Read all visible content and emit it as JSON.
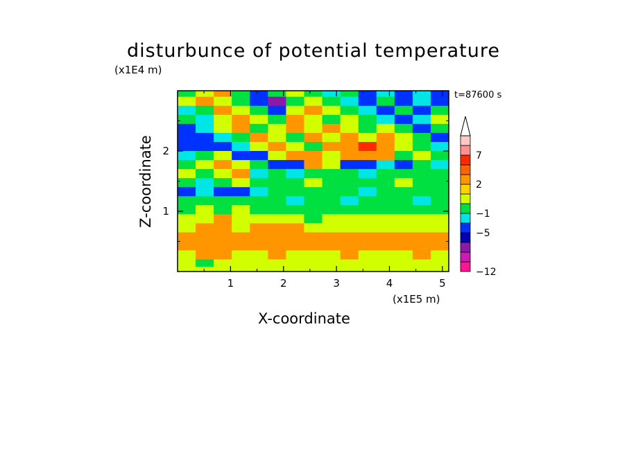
{
  "chart_data": {
    "type": "heatmap",
    "title": "disturbunce of potential temperature",
    "xlabel": "X-coordinate",
    "ylabel": "Z-coordinate",
    "x_unit": "(x1E5 m)",
    "y_unit": "(x1E4 m)",
    "time_label": "t=87600 s",
    "xlim": [
      0,
      5.12
    ],
    "ylim": [
      0,
      3.0
    ],
    "x_ticks": [
      "1",
      "2",
      "3",
      "4",
      "5"
    ],
    "y_ticks": [
      "1",
      "2"
    ],
    "colorbar": {
      "labels": [
        "7",
        "2",
        "−1",
        "−5",
        "−12"
      ],
      "colors": [
        "#ff1493",
        "#cc1ab4",
        "#8a1aa8",
        "#0000b4",
        "#0032ff",
        "#00e6e6",
        "#00e040",
        "#d2ff00",
        "#ffd200",
        "#ff9600",
        "#ff6400",
        "#ff2a00",
        "#ff9090",
        "#ffc8c8"
      ],
      "extend_max": true
    },
    "rows": [
      {
        "z": [
          2.9,
          3.0
        ],
        "pattern": [
          "green",
          "yellow",
          "orange",
          "green",
          "blue",
          "green",
          "yellow",
          "green",
          "cyan",
          "green",
          "blue",
          "cyan",
          "blue",
          "cyan",
          "blue"
        ]
      },
      {
        "z": [
          2.75,
          2.9
        ],
        "pattern": [
          "yellow",
          "orange",
          "yellow",
          "green",
          "blue",
          "purple",
          "green",
          "yellow",
          "green",
          "cyan",
          "blue",
          "green",
          "blue",
          "cyan",
          "blue"
        ]
      },
      {
        "z": [
          2.6,
          2.75
        ],
        "pattern": [
          "cyan",
          "green",
          "orange",
          "yellow",
          "green",
          "blue",
          "yellow",
          "orange",
          "yellow",
          "green",
          "cyan",
          "blue",
          "green",
          "blue",
          "green"
        ]
      },
      {
        "z": [
          2.45,
          2.6
        ],
        "pattern": [
          "green",
          "cyan",
          "yellow",
          "orange",
          "yellow",
          "green",
          "orange",
          "yellow",
          "green",
          "yellow",
          "green",
          "cyan",
          "blue",
          "cyan",
          "yellow"
        ]
      },
      {
        "z": [
          2.3,
          2.45
        ],
        "pattern": [
          "blue",
          "cyan",
          "yellow",
          "orange",
          "green",
          "yellow",
          "orange",
          "yellow",
          "orange",
          "yellow",
          "green",
          "yellow",
          "green",
          "blue",
          "green"
        ]
      },
      {
        "z": [
          2.15,
          2.3
        ],
        "pattern": [
          "blue",
          "blue",
          "cyan",
          "green",
          "orange",
          "yellow",
          "green",
          "orange",
          "yellow",
          "orange",
          "yellow",
          "orange",
          "yellow",
          "green",
          "blue"
        ]
      },
      {
        "z": [
          2.0,
          2.15
        ],
        "pattern": [
          "blue",
          "blue",
          "blue",
          "cyan",
          "yellow",
          "orange",
          "yellow",
          "green",
          "orange",
          "orange",
          "red",
          "orange",
          "yellow",
          "green",
          "cyan"
        ]
      },
      {
        "z": [
          1.85,
          2.0
        ],
        "pattern": [
          "cyan",
          "green",
          "yellow",
          "blue",
          "blue",
          "yellow",
          "orange",
          "orange",
          "yellow",
          "orange",
          "orange",
          "orange",
          "green",
          "yellow",
          "green"
        ]
      },
      {
        "z": [
          1.7,
          1.85
        ],
        "pattern": [
          "green",
          "yellow",
          "orange",
          "yellow",
          "green",
          "blue",
          "blue",
          "orange",
          "yellow",
          "blue",
          "blue",
          "cyan",
          "blue",
          "green",
          "cyan"
        ]
      },
      {
        "z": [
          1.55,
          1.7
        ],
        "pattern": [
          "yellow",
          "green",
          "yellow",
          "orange",
          "cyan",
          "green",
          "cyan",
          "green",
          "green",
          "green",
          "cyan",
          "green",
          "green",
          "green",
          "green"
        ]
      },
      {
        "z": [
          1.4,
          1.55
        ],
        "pattern": [
          "green",
          "cyan",
          "green",
          "yellow",
          "green",
          "green",
          "green",
          "yellow",
          "green",
          "green",
          "green",
          "green",
          "yellow",
          "green",
          "green"
        ]
      },
      {
        "z": [
          1.25,
          1.4
        ],
        "pattern": [
          "blue",
          "cyan",
          "blue",
          "blue",
          "cyan",
          "green",
          "green",
          "green",
          "green",
          "green",
          "cyan",
          "green",
          "green",
          "green",
          "green"
        ]
      },
      {
        "z": [
          1.1,
          1.25
        ],
        "pattern": [
          "green",
          "green",
          "green",
          "green",
          "green",
          "green",
          "cyan",
          "green",
          "green",
          "cyan",
          "green",
          "green",
          "green",
          "cyan",
          "green"
        ]
      },
      {
        "z": [
          0.95,
          1.1
        ],
        "pattern": [
          "green",
          "yellow",
          "green",
          "yellow",
          "green",
          "green",
          "green",
          "green",
          "green",
          "green",
          "green",
          "green",
          "green",
          "green",
          "green"
        ]
      },
      {
        "z": [
          0.8,
          0.95
        ],
        "pattern": [
          "yellow",
          "yellow",
          "orange",
          "yellow",
          "yellow",
          "yellow",
          "yellow",
          "green",
          "yellow",
          "yellow",
          "yellow",
          "yellow",
          "yellow",
          "yellow",
          "yellow"
        ]
      },
      {
        "z": [
          0.65,
          0.8
        ],
        "pattern": [
          "yellow",
          "orange",
          "orange",
          "yellow",
          "orange",
          "orange",
          "orange",
          "yellow",
          "yellow",
          "yellow",
          "yellow",
          "yellow",
          "yellow",
          "yellow",
          "yellow"
        ]
      },
      {
        "z": [
          0.5,
          0.65
        ],
        "pattern": [
          "orange",
          "orange",
          "orange",
          "orange",
          "orange",
          "orange",
          "orange",
          "orange",
          "orange",
          "orange",
          "orange",
          "orange",
          "orange",
          "orange",
          "orange"
        ]
      },
      {
        "z": [
          0.35,
          0.5
        ],
        "pattern": [
          "orange",
          "orange",
          "orange",
          "orange",
          "orange",
          "orange",
          "orange",
          "orange",
          "orange",
          "orange",
          "orange",
          "orange",
          "orange",
          "orange",
          "orange"
        ]
      },
      {
        "z": [
          0.2,
          0.35
        ],
        "pattern": [
          "yellow",
          "orange",
          "orange",
          "yellow",
          "yellow",
          "orange",
          "yellow",
          "yellow",
          "yellow",
          "orange",
          "yellow",
          "yellow",
          "yellow",
          "orange",
          "yellow"
        ]
      },
      {
        "z": [
          0.08,
          0.2
        ],
        "pattern": [
          "yellow",
          "green",
          "yellow",
          "yellow",
          "yellow",
          "yellow",
          "yellow",
          "yellow",
          "yellow",
          "yellow",
          "yellow",
          "yellow",
          "yellow",
          "yellow",
          "yellow"
        ]
      },
      {
        "z": [
          0.0,
          0.08
        ],
        "pattern": [
          "yellow",
          "yellow",
          "yellow",
          "yellow",
          "yellow",
          "yellow",
          "yellow",
          "yellow",
          "yellow",
          "yellow",
          "yellow",
          "yellow",
          "yellow",
          "yellow",
          "yellow"
        ]
      }
    ],
    "palette": {
      "blue": "#0032ff",
      "purple": "#8a1aa8",
      "cyan": "#00e6e6",
      "green": "#00e040",
      "yellow": "#d2ff00",
      "orange": "#ff9600",
      "red": "#ff2a00"
    }
  }
}
